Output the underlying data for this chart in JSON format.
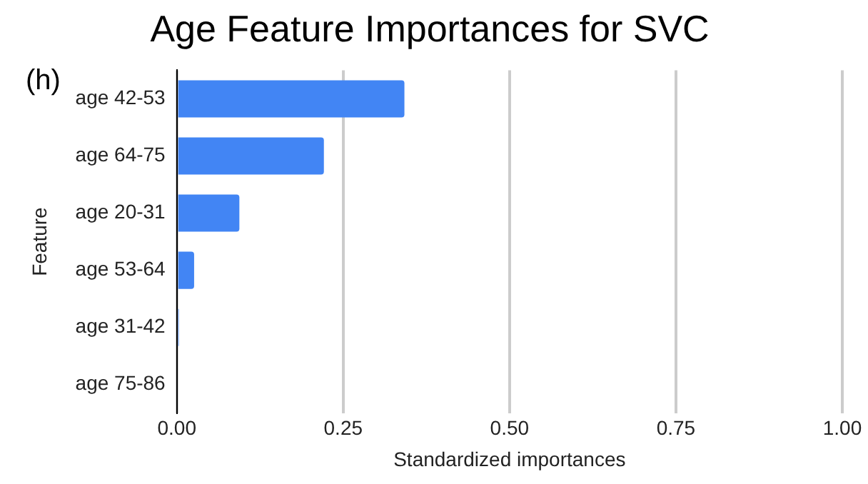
{
  "chart_data": {
    "type": "bar",
    "orientation": "horizontal",
    "title": "Age Feature Importances for SVC",
    "xlabel": "Standardized importances",
    "ylabel": "Feature",
    "categories": [
      "age 42-53",
      "age 64-75",
      "age 20-31",
      "age 53-64",
      "age 31-42",
      "age 75-86"
    ],
    "values": [
      0.342,
      0.221,
      0.094,
      0.026,
      0.003,
      0
    ],
    "color": "#4285f4",
    "xlim": [
      0,
      1
    ],
    "xticks": [
      {
        "value": 0,
        "label": "0.00"
      },
      {
        "value": 0.25,
        "label": "0.25"
      },
      {
        "value": 0.5,
        "label": "0.50"
      },
      {
        "value": 0.75,
        "label": "0.75"
      },
      {
        "value": 1,
        "label": "1.00"
      }
    ],
    "grid": "x",
    "legend": false,
    "annotations": [
      "(h)"
    ]
  }
}
